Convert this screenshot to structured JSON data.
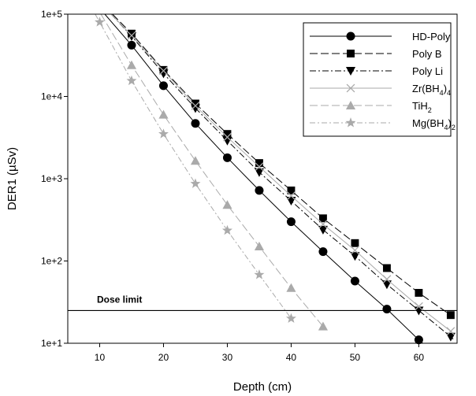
{
  "chart_data": {
    "type": "line",
    "xlabel": "Depth (cm)",
    "ylabel": "DER1 (µSv)",
    "yscale": "log",
    "xlim": [
      5,
      66
    ],
    "ylim": [
      10,
      100000
    ],
    "x_ticks": [
      10,
      20,
      30,
      40,
      50,
      60
    ],
    "y_ticks": [
      {
        "value": 10,
        "label": "1e+1"
      },
      {
        "value": 100,
        "label": "1e+2"
      },
      {
        "value": 1000,
        "label": "1e+3"
      },
      {
        "value": 10000,
        "label": "1e+4"
      },
      {
        "value": 100000,
        "label": "1e+5"
      }
    ],
    "grid": false,
    "legend_position": "top-right",
    "reference_line": {
      "label": "Dose limit",
      "value": 25
    },
    "series": [
      {
        "name": "HD-Poly",
        "sub": "",
        "tail": "",
        "color": "#000000",
        "dash": "",
        "marker": "circle",
        "x": [
          15,
          20,
          25,
          30,
          35,
          40,
          45,
          50,
          55,
          60
        ],
        "y": [
          42000,
          13500,
          4700,
          1800,
          720,
          300,
          130,
          57,
          26,
          11
        ],
        "line_start": {
          "x": 10.8,
          "y": 100000
        },
        "line_end": {
          "x": 62.5,
          "y": 7.5
        }
      },
      {
        "name": "Poly B",
        "sub": "",
        "tail": "",
        "color": "#000000",
        "dash": "10,4",
        "marker": "square",
        "x": [
          15,
          20,
          25,
          30,
          35,
          40,
          45,
          50,
          55,
          60,
          65
        ],
        "y": [
          58000,
          21000,
          8200,
          3500,
          1550,
          720,
          330,
          165,
          82,
          41,
          22
        ],
        "line_start": {
          "x": 12,
          "y": 100000
        },
        "line_end": {
          "x": 65.5,
          "y": 20
        }
      },
      {
        "name": "Poly Li",
        "sub": "",
        "tail": "",
        "color": "#000000",
        "dash": "8,3,2,3",
        "marker": "triangle-down",
        "x": [
          15,
          20,
          25,
          30,
          35,
          40,
          45,
          50,
          55,
          60,
          65
        ],
        "y": [
          54000,
          19000,
          7200,
          2900,
          1200,
          540,
          240,
          115,
          52,
          25,
          12
        ],
        "line_start": {
          "x": 11.8,
          "y": 100000
        },
        "line_end": {
          "x": 65.5,
          "y": 11
        }
      },
      {
        "name": "Zr(BH",
        "sub": "4",
        "tail": ")4",
        "color": "#aaaaaa",
        "dash": "",
        "marker": "x",
        "x": [
          15,
          20,
          25,
          30,
          35,
          40,
          45,
          50,
          55,
          60,
          65
        ],
        "y": [
          55000,
          20500,
          7700,
          3200,
          1400,
          620,
          280,
          135,
          60,
          28,
          14
        ],
        "line_start": {
          "x": 11.8,
          "y": 100000
        },
        "line_end": {
          "x": 65.5,
          "y": 13
        }
      },
      {
        "name": "TiH",
        "sub": "2",
        "tail": "",
        "color": "#aaaaaa",
        "dash": "10,4",
        "marker": "triangle-up",
        "x": [
          15,
          20,
          25,
          30,
          35,
          40,
          45
        ],
        "y": [
          24000,
          6000,
          1650,
          480,
          150,
          47,
          16
        ],
        "line_start": {
          "x": 10.2,
          "y": 100000
        },
        "line_end": {
          "x": 45,
          "y": 16
        }
      },
      {
        "name": "Mg(BH",
        "sub": "4",
        "tail": ")2",
        "color": "#aaaaaa",
        "dash": "7,3,2,3",
        "marker": "star",
        "x": [
          10,
          15,
          20,
          25,
          30,
          35,
          40
        ],
        "y": [
          80000,
          15500,
          3500,
          870,
          235,
          68,
          20
        ],
        "line_start": {
          "x": 9.3,
          "y": 100000
        },
        "line_end": {
          "x": 40,
          "y": 20
        }
      }
    ]
  }
}
